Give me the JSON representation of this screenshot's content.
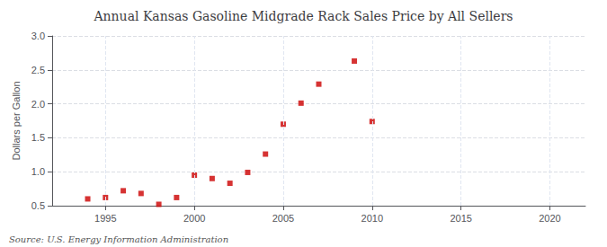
{
  "chart_data": {
    "type": "scatter",
    "title": "Annual Kansas Gasoline Midgrade Rack Sales Price by All Sellers",
    "ylabel": "Dollars per Gallon",
    "annotation": "Source: U.S. Energy Information Administration",
    "x": [
      1994,
      1995,
      1996,
      1997,
      1998,
      1999,
      2000,
      2001,
      2002,
      2003,
      2004,
      2005,
      2006,
      2007,
      2009,
      2010
    ],
    "values": [
      0.6,
      0.62,
      0.72,
      0.68,
      0.52,
      0.62,
      0.95,
      0.9,
      0.83,
      0.99,
      1.26,
      1.7,
      2.01,
      2.29,
      2.63,
      1.74
    ],
    "color": "#cc0000",
    "marker": "square",
    "xlim": [
      1992,
      2022
    ],
    "ylim": [
      0.5,
      3.0
    ],
    "xticks": [
      1995,
      2000,
      2005,
      2010,
      2015,
      2020
    ],
    "yticks": [
      0.5,
      {
        "value": 1.0,
        "label": "1.0"
      },
      1.5,
      {
        "value": 2.0,
        "label": "2.0"
      },
      2.5,
      {
        "value": 3.0,
        "label": "3.0"
      }
    ],
    "grid": true
  }
}
